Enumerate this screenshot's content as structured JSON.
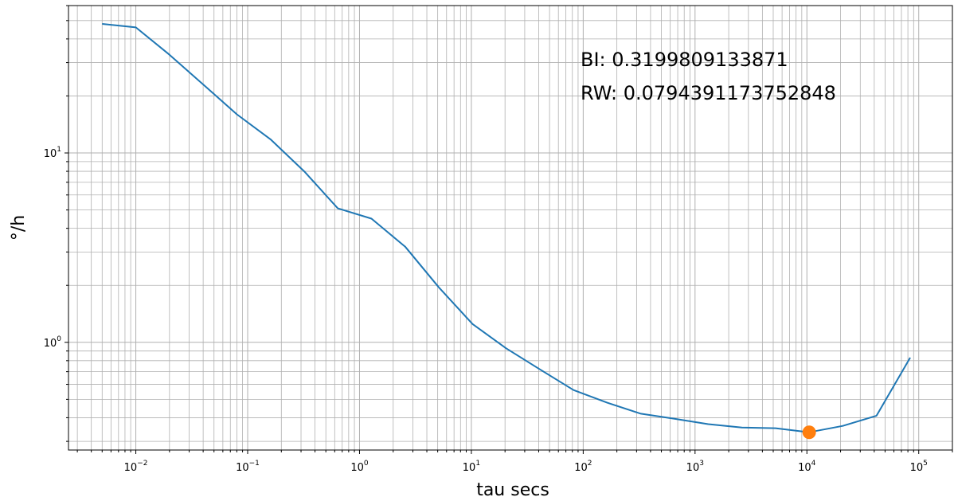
{
  "chart_data": {
    "type": "line",
    "xscale": "log",
    "yscale": "log",
    "xlabel": "tau secs",
    "ylabel": "°/h",
    "xlim": [
      0.0025,
      200000
    ],
    "ylim": [
      0.27,
      60
    ],
    "grid": true,
    "x_ticks": [
      {
        "value": 0.01,
        "base": "10",
        "exp": "−2"
      },
      {
        "value": 0.1,
        "base": "10",
        "exp": "−1"
      },
      {
        "value": 1,
        "base": "10",
        "exp": "0"
      },
      {
        "value": 10,
        "base": "10",
        "exp": "1"
      },
      {
        "value": 100,
        "base": "10",
        "exp": "2"
      },
      {
        "value": 1000,
        "base": "10",
        "exp": "3"
      },
      {
        "value": 10000,
        "base": "10",
        "exp": "4"
      },
      {
        "value": 100000,
        "base": "10",
        "exp": "5"
      }
    ],
    "y_ticks": [
      {
        "value": 1,
        "base": "10",
        "exp": "0"
      },
      {
        "value": 10,
        "base": "10",
        "exp": "1"
      }
    ],
    "series": [
      {
        "color": "#1f77b4",
        "x": [
          0.005,
          0.01,
          0.02,
          0.04,
          0.08,
          0.16,
          0.32,
          0.64,
          1.28,
          2.56,
          5.12,
          10.24,
          20.48,
          40.96,
          81.92,
          163.84,
          327.68,
          655.36,
          1310.72,
          2621.44,
          5242.88,
          10485.76,
          20971.52,
          41943.04,
          83886.08
        ],
        "y": [
          48.0,
          46.0,
          33.0,
          23.0,
          16.0,
          11.8,
          8.0,
          5.1,
          4.5,
          3.2,
          1.95,
          1.25,
          0.93,
          0.72,
          0.56,
          0.48,
          0.42,
          0.395,
          0.37,
          0.355,
          0.352,
          0.335,
          0.362,
          0.41,
          0.83
        ]
      }
    ],
    "highlight_point": {
      "x": 10485.76,
      "y": 0.335,
      "color": "#ff7f0e"
    },
    "annotations": [
      "BI: 0.3199809133871",
      "RW: 0.0794391173752848"
    ]
  }
}
